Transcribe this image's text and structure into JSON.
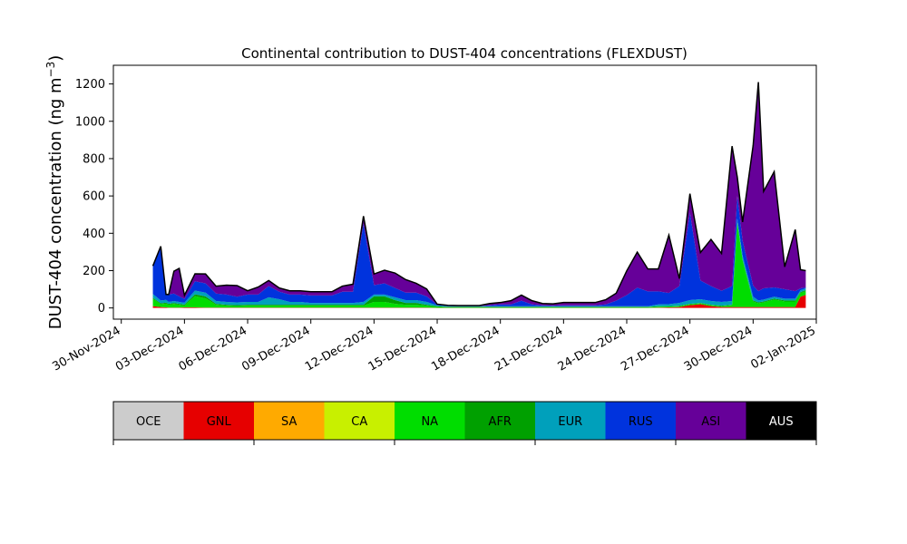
{
  "chart_data": {
    "type": "area",
    "stacked": true,
    "title": "Continental contribution to DUST-404 concentrations (FLEXDUST)",
    "ylabel_main": "DUST-404 concentration (ng m",
    "ylabel_exp": "−3",
    "ylabel_close": ")",
    "xlabel": "",
    "ylim": [
      -60,
      1300
    ],
    "y_ticks": [
      0,
      200,
      400,
      600,
      800,
      1000,
      1200
    ],
    "xlim": [
      "2024-11-29T15:00",
      "2025-01-02T00:00"
    ],
    "x_ticks": [
      {
        "date": "2024-11-30",
        "label": "30-Nov-2024"
      },
      {
        "date": "2024-12-03",
        "label": "03-Dec-2024"
      },
      {
        "date": "2024-12-06",
        "label": "06-Dec-2024"
      },
      {
        "date": "2024-12-09",
        "label": "09-Dec-2024"
      },
      {
        "date": "2024-12-12",
        "label": "12-Dec-2024"
      },
      {
        "date": "2024-12-15",
        "label": "15-Dec-2024"
      },
      {
        "date": "2024-12-18",
        "label": "18-Dec-2024"
      },
      {
        "date": "2024-12-21",
        "label": "21-Dec-2024"
      },
      {
        "date": "2024-12-24",
        "label": "24-Dec-2024"
      },
      {
        "date": "2024-12-27",
        "label": "27-Dec-2024"
      },
      {
        "date": "2024-12-30",
        "label": "30-Dec-2024"
      },
      {
        "date": "2025-01-02",
        "label": "02-Jan-2025"
      }
    ],
    "x": [
      "2024-12-01T12:00",
      "2024-12-01T21:00",
      "2024-12-02T03:00",
      "2024-12-02T06:00",
      "2024-12-02T12:00",
      "2024-12-02T18:00",
      "2024-12-03T00:00",
      "2024-12-03T12:00",
      "2024-12-04T00:00",
      "2024-12-04T12:00",
      "2024-12-05T00:00",
      "2024-12-05T12:00",
      "2024-12-06T00:00",
      "2024-12-06T12:00",
      "2024-12-07T00:00",
      "2024-12-07T12:00",
      "2024-12-08T00:00",
      "2024-12-08T12:00",
      "2024-12-09T00:00",
      "2024-12-09T12:00",
      "2024-12-10T00:00",
      "2024-12-10T12:00",
      "2024-12-11T00:00",
      "2024-12-11T12:00",
      "2024-12-12T00:00",
      "2024-12-12T12:00",
      "2024-12-13T00:00",
      "2024-12-13T12:00",
      "2024-12-14T00:00",
      "2024-12-14T12:00",
      "2024-12-15T00:00",
      "2024-12-15T12:00",
      "2024-12-16T00:00",
      "2024-12-16T12:00",
      "2024-12-17T00:00",
      "2024-12-17T12:00",
      "2024-12-18T00:00",
      "2024-12-18T12:00",
      "2024-12-19T00:00",
      "2024-12-19T12:00",
      "2024-12-20T00:00",
      "2024-12-20T12:00",
      "2024-12-21T00:00",
      "2024-12-21T12:00",
      "2024-12-22T00:00",
      "2024-12-22T12:00",
      "2024-12-23T00:00",
      "2024-12-23T12:00",
      "2024-12-24T00:00",
      "2024-12-24T12:00",
      "2024-12-25T00:00",
      "2024-12-25T12:00",
      "2024-12-26T00:00",
      "2024-12-26T12:00",
      "2024-12-27T00:00",
      "2024-12-27T12:00",
      "2024-12-28T00:00",
      "2024-12-28T12:00",
      "2024-12-29T00:00",
      "2024-12-29T06:00",
      "2024-12-29T12:00",
      "2024-12-30T00:00",
      "2024-12-30T06:00",
      "2024-12-30T12:00",
      "2024-12-31T00:00",
      "2024-12-31T12:00",
      "2025-01-01T00:00",
      "2025-01-01T06:00",
      "2025-01-01T12:00"
    ],
    "series": [
      {
        "name": "OCE",
        "color": "#cccccc",
        "values": [
          0,
          0,
          0,
          0,
          0,
          0,
          0,
          0,
          0,
          0,
          0,
          0,
          0,
          0,
          0,
          0,
          0,
          0,
          0,
          0,
          0,
          0,
          0,
          0,
          0,
          0,
          0,
          0,
          0,
          0,
          0,
          0,
          0,
          0,
          0,
          0,
          0,
          0,
          0,
          0,
          0,
          0,
          0,
          0,
          0,
          0,
          0,
          0,
          0,
          0,
          0,
          0,
          0,
          0,
          0,
          0,
          0,
          0,
          0,
          0,
          0,
          0,
          0,
          0,
          0,
          0,
          0,
          0,
          0
        ]
      },
      {
        "name": "GNL",
        "color": "#e60000",
        "values": [
          10,
          5,
          3,
          2,
          2,
          2,
          3,
          3,
          2,
          2,
          2,
          2,
          2,
          2,
          2,
          2,
          2,
          2,
          2,
          2,
          2,
          2,
          2,
          2,
          2,
          2,
          2,
          2,
          2,
          2,
          1,
          1,
          1,
          1,
          1,
          1,
          1,
          1,
          1,
          1,
          1,
          1,
          1,
          1,
          1,
          1,
          1,
          1,
          1,
          1,
          1,
          2,
          3,
          5,
          15,
          20,
          10,
          5,
          5,
          5,
          5,
          5,
          5,
          5,
          5,
          5,
          5,
          60,
          70
        ]
      },
      {
        "name": "SA",
        "color": "#ffaa00",
        "values": [
          0,
          0,
          0,
          0,
          0,
          0,
          0,
          0,
          0,
          0,
          0,
          0,
          0,
          0,
          0,
          0,
          0,
          0,
          0,
          0,
          0,
          0,
          0,
          0,
          0,
          0,
          0,
          0,
          0,
          0,
          0,
          0,
          0,
          0,
          0,
          0,
          0,
          0,
          0,
          0,
          0,
          0,
          0,
          0,
          0,
          0,
          0,
          0,
          0,
          0,
          0,
          0,
          0,
          0,
          0,
          0,
          0,
          0,
          0,
          0,
          0,
          0,
          0,
          0,
          0,
          0,
          0,
          0,
          0
        ]
      },
      {
        "name": "CA",
        "color": "#c8f000",
        "values": [
          0,
          0,
          0,
          0,
          0,
          0,
          0,
          0,
          0,
          0,
          0,
          0,
          0,
          0,
          0,
          0,
          0,
          0,
          0,
          0,
          0,
          0,
          0,
          0,
          0,
          0,
          0,
          0,
          0,
          0,
          0,
          0,
          0,
          0,
          0,
          0,
          0,
          0,
          0,
          0,
          0,
          0,
          0,
          0,
          0,
          0,
          0,
          0,
          0,
          0,
          0,
          0,
          0,
          0,
          0,
          0,
          0,
          0,
          0,
          0,
          0,
          0,
          0,
          0,
          0,
          0,
          0,
          0,
          0
        ]
      },
      {
        "name": "NA",
        "color": "#00dd00",
        "values": [
          40,
          15,
          20,
          15,
          20,
          15,
          10,
          60,
          50,
          15,
          10,
          8,
          10,
          10,
          10,
          10,
          10,
          10,
          10,
          10,
          10,
          10,
          10,
          10,
          30,
          30,
          20,
          15,
          15,
          10,
          5,
          3,
          3,
          3,
          3,
          3,
          3,
          3,
          3,
          3,
          3,
          3,
          3,
          3,
          3,
          3,
          3,
          3,
          3,
          3,
          3,
          5,
          5,
          5,
          5,
          5,
          5,
          5,
          10,
          450,
          250,
          30,
          20,
          25,
          40,
          30,
          30,
          20,
          20
        ]
      },
      {
        "name": "AFR",
        "color": "#00a000",
        "values": [
          5,
          5,
          5,
          5,
          5,
          5,
          5,
          10,
          10,
          5,
          5,
          5,
          5,
          5,
          5,
          5,
          5,
          5,
          5,
          5,
          5,
          5,
          5,
          5,
          30,
          30,
          20,
          10,
          10,
          5,
          3,
          2,
          2,
          2,
          2,
          2,
          2,
          2,
          2,
          2,
          2,
          2,
          2,
          2,
          2,
          2,
          2,
          2,
          2,
          2,
          2,
          2,
          2,
          2,
          2,
          2,
          2,
          2,
          2,
          5,
          5,
          5,
          5,
          5,
          5,
          5,
          5,
          5,
          5
        ]
      },
      {
        "name": "EUR",
        "color": "#00a0bb",
        "values": [
          20,
          15,
          15,
          10,
          10,
          10,
          10,
          20,
          20,
          15,
          15,
          15,
          15,
          15,
          40,
          30,
          15,
          15,
          10,
          10,
          10,
          10,
          10,
          15,
          10,
          10,
          15,
          15,
          15,
          15,
          5,
          3,
          3,
          3,
          3,
          3,
          3,
          3,
          3,
          3,
          3,
          3,
          3,
          3,
          3,
          3,
          3,
          3,
          3,
          3,
          3,
          10,
          10,
          15,
          20,
          20,
          20,
          20,
          20,
          20,
          20,
          20,
          10,
          10,
          10,
          10,
          10,
          10,
          10
        ]
      },
      {
        "name": "RUS",
        "color": "#0033dd",
        "values": [
          150,
          280,
          30,
          40,
          40,
          30,
          20,
          50,
          50,
          40,
          40,
          30,
          40,
          40,
          60,
          40,
          40,
          40,
          40,
          40,
          40,
          60,
          60,
          420,
          50,
          60,
          50,
          40,
          40,
          30,
          4,
          2,
          1,
          3,
          1,
          5,
          10,
          10,
          30,
          10,
          5,
          3,
          5,
          5,
          5,
          5,
          10,
          30,
          60,
          100,
          80,
          70,
          60,
          90,
          470,
          100,
          80,
          60,
          80,
          120,
          80,
          60,
          50,
          60,
          50,
          50,
          40,
          10,
          5
        ]
      },
      {
        "name": "ASI",
        "color": "#660099",
        "values": [
          0,
          10,
          0,
          0,
          120,
          150,
          20,
          40,
          50,
          40,
          50,
          60,
          20,
          40,
          30,
          20,
          20,
          20,
          20,
          20,
          20,
          30,
          40,
          40,
          60,
          70,
          80,
          70,
          50,
          40,
          2,
          3,
          3,
          1,
          3,
          10,
          10,
          20,
          30,
          20,
          10,
          10,
          15,
          15,
          15,
          15,
          25,
          40,
          130,
          190,
          120,
          120,
          310,
          40,
          100,
          150,
          250,
          200,
          750,
          100,
          100,
          750,
          1120,
          520,
          620,
          120,
          330,
          100,
          90
        ]
      },
      {
        "name": "AUS",
        "color": "#000000",
        "values": [
          0,
          0,
          0,
          0,
          0,
          0,
          0,
          0,
          0,
          0,
          0,
          0,
          0,
          0,
          0,
          0,
          0,
          0,
          0,
          0,
          0,
          0,
          0,
          0,
          0,
          0,
          0,
          0,
          0,
          0,
          0,
          0,
          0,
          0,
          0,
          0,
          0,
          0,
          0,
          0,
          0,
          0,
          0,
          0,
          0,
          0,
          0,
          0,
          0,
          0,
          0,
          0,
          0,
          0,
          0,
          0,
          0,
          0,
          0,
          0,
          0,
          0,
          0,
          0,
          0,
          0,
          0,
          0,
          0
        ]
      }
    ],
    "legend": {
      "placement": "bottom",
      "items": [
        {
          "label": "OCE",
          "color": "#cccccc",
          "text_color": "#000000"
        },
        {
          "label": "GNL",
          "color": "#e60000",
          "text_color": "#000000"
        },
        {
          "label": "SA",
          "color": "#ffaa00",
          "text_color": "#000000"
        },
        {
          "label": "CA",
          "color": "#c8f000",
          "text_color": "#000000"
        },
        {
          "label": "NA",
          "color": "#00dd00",
          "text_color": "#000000"
        },
        {
          "label": "AFR",
          "color": "#00a000",
          "text_color": "#000000"
        },
        {
          "label": "EUR",
          "color": "#00a0bb",
          "text_color": "#000000"
        },
        {
          "label": "RUS",
          "color": "#0033dd",
          "text_color": "#000000"
        },
        {
          "label": "ASI",
          "color": "#660099",
          "text_color": "#000000"
        },
        {
          "label": "AUS",
          "color": "#000000",
          "text_color": "#ffffff"
        }
      ]
    }
  }
}
